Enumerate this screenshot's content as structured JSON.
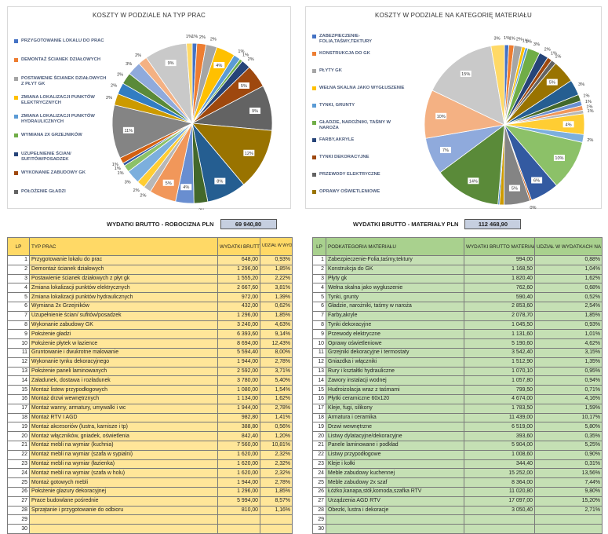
{
  "chart_data": [
    {
      "type": "pie",
      "title": "KOSZTY W PODZIALE NA TYP PRAC",
      "legend_position": "left",
      "legend": [
        {
          "label": "PRZYGOTOWANIE LOKALU DO PRAC",
          "color": "#4472c4"
        },
        {
          "label": "DEMONTAŻ ŚCIANEK DZIAŁOWYCH",
          "color": "#ed7d31"
        },
        {
          "label": "POSTAWIENIE ŚCIANEK DZIAŁOWYCH Z PŁYT GK",
          "color": "#a5a5a5"
        },
        {
          "label": "ZMIANA LOKALIZACJI PUNKTÓW ELEKTRYCZNYCH",
          "color": "#ffc000"
        },
        {
          "label": "ZMIANA LOKALIZACJI PUNKTÓW HYDRAULICZNYCH",
          "color": "#5b9bd5"
        },
        {
          "label": "WYMIANA 2X GRZEJNIKÓW",
          "color": "#70ad47"
        },
        {
          "label": "UZUPEŁNIENIE ŚCIAN/ SUFITÓW/POSADZEK",
          "color": "#264478"
        },
        {
          "label": "WYKONANIE ZABUDOWY GK",
          "color": "#9e480e"
        },
        {
          "label": "POŁOŻENIE GŁADZI",
          "color": "#636363"
        }
      ],
      "values": [
        0.93,
        1.85,
        2.22,
        3.81,
        1.39,
        0.62,
        1.85,
        4.63,
        9.14,
        12.43,
        8.0,
        2.78,
        3.71,
        5.4,
        1.54,
        1.62,
        2.78,
        1.41,
        0.56,
        1.2,
        10.81,
        2.32,
        2.32,
        2.32,
        2.78,
        1.85,
        8.57,
        1.16
      ],
      "labels": [
        "1%",
        "2%",
        "2%",
        "4%",
        "1%",
        "1%",
        "2%",
        "5%",
        "9%",
        "12%",
        "8%",
        "3%",
        "4%",
        "5%",
        "2%",
        "2%",
        "3%",
        "1%",
        "1%",
        "1%",
        "11%",
        "2%",
        "2%",
        "2%",
        "3%",
        "2%",
        "9%",
        "1%"
      ]
    },
    {
      "type": "pie",
      "title": "KOSZTY W PODZIALE NA KATEGORIĘ MATERIAŁU",
      "legend_position": "left",
      "legend": [
        {
          "label": "ZABEZPIECZENIE-FOLIA,TAŚMY,TEKTURY",
          "color": "#4472c4"
        },
        {
          "label": "KONSTRUKCJA DO GK",
          "color": "#ed7d31"
        },
        {
          "label": "PŁYTY GK",
          "color": "#a5a5a5"
        },
        {
          "label": "WEŁNA SKALNA JAKO WYGŁUSZENIE",
          "color": "#ffc000"
        },
        {
          "label": "TYNKI, GRUNTY",
          "color": "#5b9bd5"
        },
        {
          "label": "GŁADZIE, NAROŻNIKI, TAŚMY W NAROŻA",
          "color": "#70ad47"
        },
        {
          "label": "FARBY,AKRYLE",
          "color": "#264478"
        },
        {
          "label": "TYNKI DEKORACYJNE",
          "color": "#9e480e"
        },
        {
          "label": "PRZEWODY ELEKTRYCZNE",
          "color": "#636363"
        },
        {
          "label": "OPRAWY OŚWIETLENIOWE",
          "color": "#997300"
        }
      ],
      "values": [
        0.88,
        1.04,
        1.62,
        0.68,
        0.52,
        2.54,
        1.85,
        0.93,
        1.01,
        4.62,
        3.15,
        1.35,
        0.95,
        0.94,
        0.71,
        4.16,
        1.59,
        10.17,
        5.8,
        0.35,
        5.25,
        0.9,
        0.31,
        13.56,
        7.44,
        9.8,
        15.2,
        2.71
      ],
      "labels": [
        "1%",
        "1%",
        "2%",
        "1%",
        "1%",
        "3%",
        "2%",
        "1%",
        "1%",
        "5%",
        "3%",
        "1%",
        "1%",
        "1%",
        "1%",
        "4%",
        "2%",
        "10%",
        "6%",
        "0%",
        "5%",
        "1%",
        "0%",
        "14%",
        "7%",
        "10%",
        "15%",
        "3%"
      ]
    }
  ],
  "summary": {
    "labor_label": "WYDATKI BRUTTO - ROBOCIZNA PLN",
    "labor_value": "69 940,80",
    "material_label": "WYDATKI BRUTTO - MATERIAŁY PLN",
    "material_value": "112 468,90"
  },
  "labor_table": {
    "headers": {
      "lp": "LP",
      "name": "TYP PRAC",
      "amount": "WYDATKI BRUTTO ROBOCIZNA PLN",
      "share": "UDZIAŁ W WYDATKACH NA ROBOCIZNĘ"
    },
    "rows": [
      {
        "lp": "1",
        "name": "Przygotowanie lokalu do prac",
        "amount": "648,00",
        "share": "0,93%"
      },
      {
        "lp": "2",
        "name": "Demontaż ścianek działowych",
        "amount": "1 296,00",
        "share": "1,85%"
      },
      {
        "lp": "3",
        "name": "Postawienie ścianek działowych z płyt gk",
        "amount": "1 555,20",
        "share": "2,22%"
      },
      {
        "lp": "4",
        "name": "Zmiana lokalizacji punktów elektrycznych",
        "amount": "2 667,60",
        "share": "3,81%"
      },
      {
        "lp": "5",
        "name": "Zmiana lokalizacji punktów hydraulicznych",
        "amount": "972,00",
        "share": "1,39%"
      },
      {
        "lp": "6",
        "name": "Wymiana 2x Grzejników",
        "amount": "432,00",
        "share": "0,62%"
      },
      {
        "lp": "7",
        "name": "Uzupełnienie ścian/ sufitów/posadzek",
        "amount": "1 296,00",
        "share": "1,85%"
      },
      {
        "lp": "8",
        "name": "Wykonanie zabudowy GK",
        "amount": "3 240,00",
        "share": "4,63%"
      },
      {
        "lp": "9",
        "name": "Położenie gładzi",
        "amount": "6 393,60",
        "share": "9,14%"
      },
      {
        "lp": "10",
        "name": "Położenie płytek w łazience",
        "amount": "8 694,00",
        "share": "12,43%"
      },
      {
        "lp": "11",
        "name": "Gruntowanie i dwukrotne malowanie",
        "amount": "5 594,40",
        "share": "8,00%"
      },
      {
        "lp": "12",
        "name": "Wykonanie tynku dekoracyjnego",
        "amount": "1 944,00",
        "share": "2,78%"
      },
      {
        "lp": "13",
        "name": "Położenie paneli laminowanych",
        "amount": "2 592,00",
        "share": "3,71%"
      },
      {
        "lp": "14",
        "name": "Załadunek, dostawa i rozładunek",
        "amount": "3 780,00",
        "share": "5,40%"
      },
      {
        "lp": "15",
        "name": "Montaż listew przypodłogowych",
        "amount": "1 080,00",
        "share": "1,54%"
      },
      {
        "lp": "16",
        "name": "Montaż  drzwi wewnętrznych",
        "amount": "1 134,00",
        "share": "1,62%"
      },
      {
        "lp": "17",
        "name": "Montaż wanny, armatury, umywalki i wc",
        "amount": "1 944,00",
        "share": "2,78%"
      },
      {
        "lp": "18",
        "name": "Montaż RTV I AGD",
        "amount": "982,80",
        "share": "1,41%"
      },
      {
        "lp": "19",
        "name": "Montaż akcesoriów (lustra, karnisze i tp)",
        "amount": "388,80",
        "share": "0,56%"
      },
      {
        "lp": "20",
        "name": "Montaż włączników, gniadek, oświetlenia",
        "amount": "842,40",
        "share": "1,20%"
      },
      {
        "lp": "21",
        "name": "Montaż mebli na wymiar (kuchnia)",
        "amount": "7 560,00",
        "share": "10,81%"
      },
      {
        "lp": "22",
        "name": "Montaż mebli na wymiar (szafa w sypialni)",
        "amount": "1 620,00",
        "share": "2,32%"
      },
      {
        "lp": "23",
        "name": "Montaż mebli na wymiar (łazienka)",
        "amount": "1 620,00",
        "share": "2,32%"
      },
      {
        "lp": "24",
        "name": "Montaż mebli na wymiar (szafa w holu)",
        "amount": "1 620,00",
        "share": "2,32%"
      },
      {
        "lp": "25",
        "name": "Montaż   gotowych mebli",
        "amount": "1 944,00",
        "share": "2,78%"
      },
      {
        "lp": "26",
        "name": "Położenie glazury dekoracyjnej",
        "amount": "1 296,00",
        "share": "1,85%"
      },
      {
        "lp": "27",
        "name": "Prace budowlane pośrednie",
        "amount": "5 994,00",
        "share": "8,57%"
      },
      {
        "lp": "28",
        "name": "Sprzątanie i przygotowanie do odbioru",
        "amount": "810,00",
        "share": "1,16%"
      },
      {
        "lp": "29",
        "name": "",
        "amount": "",
        "share": ""
      },
      {
        "lp": "30",
        "name": "",
        "amount": "",
        "share": ""
      }
    ]
  },
  "material_table": {
    "headers": {
      "lp": "LP",
      "name": "PODKATEGORIA MATERIAŁU",
      "amount": "WYDATKI BRUTTO MATERIAŁY - PLN",
      "share": "UDZIAŁ W WYDATKACH NA MATERIAŁY %"
    },
    "rows": [
      {
        "lp": "1",
        "name": "Zabezpieczenie-Folia,taśmy,tektury",
        "amount": "994,00",
        "share": "0,88%"
      },
      {
        "lp": "2",
        "name": "Konstrukcja do GK",
        "amount": "1 168,50",
        "share": "1,04%"
      },
      {
        "lp": "3",
        "name": "Płyty gk",
        "amount": "1 820,40",
        "share": "1,62%"
      },
      {
        "lp": "4",
        "name": "Wełna skalna jako wygłuszenie",
        "amount": "762,60",
        "share": "0,68%"
      },
      {
        "lp": "5",
        "name": "Tynki, grunty",
        "amount": "590,40",
        "share": "0,52%"
      },
      {
        "lp": "6",
        "name": "Gładzie, narożniki, taśmy w naroża",
        "amount": "2 853,60",
        "share": "2,54%"
      },
      {
        "lp": "7",
        "name": "Farby,akryle",
        "amount": "2 078,70",
        "share": "1,85%"
      },
      {
        "lp": "8",
        "name": "Tynki dekoracyjne",
        "amount": "1 045,50",
        "share": "0,93%"
      },
      {
        "lp": "9",
        "name": "Przewody elektryczne",
        "amount": "1 131,60",
        "share": "1,01%"
      },
      {
        "lp": "10",
        "name": "Oprawy oświetleniowe",
        "amount": "5 190,60",
        "share": "4,62%"
      },
      {
        "lp": "11",
        "name": "Grzejniki dekoracyjne i termostaty",
        "amount": "3 542,40",
        "share": "3,15%"
      },
      {
        "lp": "12",
        "name": "Gniazdka i włączniki",
        "amount": "1 512,90",
        "share": "1,35%"
      },
      {
        "lp": "13",
        "name": "Rury i kształtki hydrauliczne",
        "amount": "1 070,10",
        "share": "0,95%"
      },
      {
        "lp": "14",
        "name": "Zawory instalacji wodnej",
        "amount": "1 057,80",
        "share": "0,94%"
      },
      {
        "lp": "15",
        "name": "Hudroizolacja wraz z taśmami",
        "amount": "799,50",
        "share": "0,71%"
      },
      {
        "lp": "16",
        "name": "Płytki ceramiczne 60x120",
        "amount": "4 674,00",
        "share": "4,16%"
      },
      {
        "lp": "17",
        "name": "Kleje, fugi, silikony",
        "amount": "1 783,50",
        "share": "1,59%"
      },
      {
        "lp": "18",
        "name": "Armatura i ceramika",
        "amount": "11 439,00",
        "share": "10,17%"
      },
      {
        "lp": "19",
        "name": "Drzwi wewnętrzne",
        "amount": "6 519,00",
        "share": "5,80%"
      },
      {
        "lp": "20",
        "name": "Listwy dylatacyjne/dekoracyjne",
        "amount": "393,60",
        "share": "0,35%"
      },
      {
        "lp": "21",
        "name": "Panele laminowane i podkład",
        "amount": "5 904,00",
        "share": "5,25%"
      },
      {
        "lp": "22",
        "name": "Listwy przypodłogowe",
        "amount": "1 008,60",
        "share": "0,90%"
      },
      {
        "lp": "23",
        "name": "Kleje i kołki",
        "amount": "344,40",
        "share": "0,31%"
      },
      {
        "lp": "24",
        "name": "Meble zabudowy kuchennej",
        "amount": "15 252,00",
        "share": "13,56%"
      },
      {
        "lp": "25",
        "name": "Meble zabudowy 2x szaf",
        "amount": "8 364,00",
        "share": "7,44%"
      },
      {
        "lp": "26",
        "name": "Łóżko,kanapa,stół,komoda,szafka RTV",
        "amount": "11 020,80",
        "share": "9,80%"
      },
      {
        "lp": "27",
        "name": "Urządzenia AGD RTV",
        "amount": "17 097,00",
        "share": "15,20%"
      },
      {
        "lp": "28",
        "name": "Obezki, lustra i dekoracje",
        "amount": "3 050,40",
        "share": "2,71%"
      },
      {
        "lp": "29",
        "name": "",
        "amount": "",
        "share": ""
      },
      {
        "lp": "30",
        "name": "",
        "amount": "",
        "share": ""
      }
    ]
  },
  "palette": [
    "#4472c4",
    "#ed7d31",
    "#a5a5a5",
    "#ffc000",
    "#5b9bd5",
    "#70ad47",
    "#264478",
    "#9e480e",
    "#636363",
    "#997300",
    "#255e91",
    "#43682b",
    "#698ed0",
    "#f1975a",
    "#b7b7b7",
    "#ffcd33",
    "#7cafdd",
    "#8cc168",
    "#335aa1",
    "#d26012",
    "#848484",
    "#cc9a00",
    "#327dc2",
    "#5a8a39",
    "#8faadc",
    "#f4b183",
    "#c9c9c9",
    "#ffd966"
  ]
}
